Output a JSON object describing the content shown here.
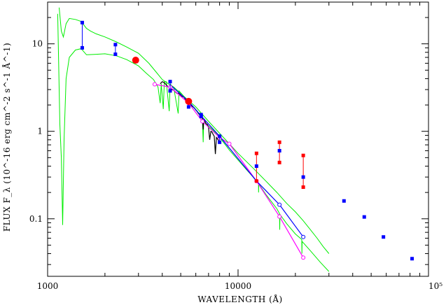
{
  "chart_data": {
    "type": "scatter",
    "xlabel": "WAVELENGTH (Å)",
    "ylabel": "FLUX F_λ (10^-16 erg cm^-2 s^-1 Å^-1)",
    "x_scale": "log",
    "y_scale": "log",
    "xlim": [
      1000,
      100000
    ],
    "ylim": [
      0.022,
      30
    ],
    "x_ticks": [
      {
        "value": 1000,
        "label": "1000"
      },
      {
        "value": 10000,
        "label": "10000"
      },
      {
        "value": 100000,
        "label": "10⁵"
      }
    ],
    "y_ticks": [
      {
        "value": 0.1,
        "label": "0.1"
      },
      {
        "value": 1,
        "label": "1"
      },
      {
        "value": 10,
        "label": "10"
      }
    ],
    "grid": false,
    "colors": {
      "green": "#00ee00",
      "black": "#000000",
      "blue": "#0000ff",
      "magenta": "#ff00ff",
      "red": "#ff0000"
    },
    "green_upper_model": [
      [
        1150,
        26
      ],
      [
        1180,
        14
      ],
      [
        1210,
        12
      ],
      [
        1250,
        17
      ],
      [
        1300,
        19.5
      ],
      [
        1400,
        19
      ],
      [
        1500,
        18
      ],
      [
        1600,
        15
      ],
      [
        1680,
        14
      ],
      [
        1800,
        13
      ],
      [
        2000,
        12
      ],
      [
        2300,
        10.5
      ],
      [
        2600,
        9.2
      ],
      [
        3000,
        7.8
      ],
      [
        3400,
        6
      ],
      [
        3700,
        4.8
      ],
      [
        4000,
        3.9
      ],
      [
        4300,
        3.5
      ],
      [
        4600,
        3.2
      ],
      [
        5000,
        2.7
      ],
      [
        5500,
        2.25
      ],
      [
        6000,
        1.9
      ],
      [
        7000,
        1.3
      ],
      [
        8000,
        0.95
      ],
      [
        9000,
        0.72
      ],
      [
        10000,
        0.56
      ],
      [
        12000,
        0.38
      ],
      [
        14000,
        0.27
      ],
      [
        16000,
        0.2
      ],
      [
        18000,
        0.15
      ],
      [
        20000,
        0.12
      ],
      [
        22000,
        0.095
      ],
      [
        24000,
        0.075
      ],
      [
        26000,
        0.06
      ],
      [
        28000,
        0.048
      ],
      [
        30000,
        0.04
      ]
    ],
    "green_lower_model": [
      [
        1130,
        22
      ],
      [
        1160,
        1.2
      ],
      [
        1180,
        0.5
      ],
      [
        1200,
        0.085
      ],
      [
        1220,
        0.8
      ],
      [
        1250,
        4
      ],
      [
        1300,
        7
      ],
      [
        1400,
        8.5
      ],
      [
        1500,
        8.8
      ],
      [
        1600,
        7.5
      ],
      [
        1800,
        7.6
      ],
      [
        2000,
        7.7
      ],
      [
        2300,
        7.3
      ],
      [
        2600,
        6.6
      ],
      [
        3000,
        5.6
      ],
      [
        3300,
        4.6
      ],
      [
        3600,
        3.9
      ],
      [
        3800,
        3.2
      ],
      [
        3900,
        2.1
      ],
      [
        3950,
        3.5
      ],
      [
        4050,
        1.8
      ],
      [
        4100,
        3.7
      ],
      [
        4200,
        3.7
      ],
      [
        4350,
        1.7
      ],
      [
        4400,
        3.5
      ],
      [
        4600,
        3.1
      ],
      [
        4850,
        1.6
      ],
      [
        4900,
        2.9
      ],
      [
        5200,
        2.5
      ],
      [
        5500,
        2.15
      ],
      [
        6000,
        1.75
      ],
      [
        6500,
        1.38
      ],
      [
        6560,
        0.75
      ],
      [
        6600,
        1.3
      ],
      [
        7000,
        1.15
      ],
      [
        7500,
        1.0
      ],
      [
        8000,
        0.85
      ],
      [
        8500,
        0.72
      ],
      [
        9000,
        0.61
      ],
      [
        10000,
        0.47
      ],
      [
        11000,
        0.37
      ],
      [
        12000,
        0.3
      ],
      [
        12800,
        0.25
      ],
      [
        12820,
        0.2
      ],
      [
        12850,
        0.25
      ],
      [
        14000,
        0.19
      ],
      [
        15000,
        0.156
      ],
      [
        16000,
        0.13
      ],
      [
        16500,
        0.115
      ],
      [
        16550,
        0.075
      ],
      [
        16600,
        0.112
      ],
      [
        18000,
        0.088
      ],
      [
        20000,
        0.067
      ],
      [
        21600,
        0.058
      ],
      [
        21650,
        0.04
      ],
      [
        21700,
        0.055
      ],
      [
        24000,
        0.043
      ],
      [
        27000,
        0.032
      ],
      [
        30000,
        0.025
      ]
    ],
    "black_spectrum": [
      [
        3900,
        3.5
      ],
      [
        4000,
        3.7
      ],
      [
        4100,
        3.6
      ],
      [
        4200,
        3.4
      ],
      [
        4300,
        3.2
      ],
      [
        4400,
        3.15
      ],
      [
        4500,
        3.0
      ],
      [
        4600,
        2.95
      ],
      [
        4700,
        2.8
      ],
      [
        4800,
        2.7
      ],
      [
        4900,
        2.75
      ],
      [
        5000,
        2.55
      ],
      [
        5100,
        2.5
      ],
      [
        5200,
        2.45
      ],
      [
        5300,
        2.3
      ],
      [
        5400,
        2.25
      ],
      [
        5500,
        2.1
      ],
      [
        5600,
        2.15
      ],
      [
        5700,
        1.95
      ],
      [
        5800,
        1.9
      ],
      [
        5900,
        1.85
      ],
      [
        6000,
        1.75
      ],
      [
        6100,
        1.7
      ],
      [
        6200,
        1.6
      ],
      [
        6300,
        1.55
      ],
      [
        6400,
        1.45
      ],
      [
        6500,
        1.42
      ],
      [
        6560,
        1.05
      ],
      [
        6600,
        1.35
      ],
      [
        6700,
        1.3
      ],
      [
        6800,
        1.22
      ],
      [
        6900,
        1.2
      ],
      [
        7000,
        1.1
      ],
      [
        7100,
        0.8
      ],
      [
        7200,
        1.0
      ],
      [
        7300,
        0.98
      ],
      [
        7400,
        0.92
      ],
      [
        7500,
        0.88
      ],
      [
        7600,
        0.55
      ],
      [
        7700,
        0.85
      ],
      [
        7800,
        0.82
      ],
      [
        7900,
        0.78
      ],
      [
        8000,
        0.75
      ]
    ],
    "blue_pairs": [
      {
        "x": 1520,
        "y": [
          17.5,
          9.0
        ]
      },
      {
        "x": 2270,
        "y": [
          9.8,
          7.6
        ]
      },
      {
        "x": 4400,
        "y": [
          3.7,
          2.9
        ]
      },
      {
        "x": 5500,
        "y": [
          2.2,
          1.9
        ]
      },
      {
        "x": 6400,
        "y": [
          1.55,
          1.48
        ]
      },
      {
        "x": 8000,
        "y": [
          0.88,
          0.75
        ]
      }
    ],
    "blue_squares": [
      {
        "x": 12500,
        "y": 0.4
      },
      {
        "x": 16500,
        "y": 0.6
      },
      {
        "x": 22000,
        "y": 0.3
      },
      {
        "x": 36000,
        "y": 0.16
      },
      {
        "x": 46000,
        "y": 0.105
      },
      {
        "x": 58000,
        "y": 0.062
      },
      {
        "x": 82000,
        "y": 0.035
      }
    ],
    "red_pairs": [
      {
        "x": 12500,
        "y": [
          0.56,
          0.27
        ]
      },
      {
        "x": 16500,
        "y": [
          0.75,
          0.44
        ]
      },
      {
        "x": 22000,
        "y": [
          0.53,
          0.23
        ]
      }
    ],
    "red_circles": [
      {
        "x": 2900,
        "y": 6.5
      },
      {
        "x": 5500,
        "y": 2.2
      }
    ],
    "blue_line": [
      [
        4400,
        3.4
      ],
      [
        5500,
        2.2
      ],
      [
        6400,
        1.5
      ],
      [
        8000,
        0.88
      ],
      [
        12500,
        0.27
      ],
      [
        16500,
        0.145
      ],
      [
        22000,
        0.062
      ]
    ],
    "magenta_line": [
      [
        3650,
        3.45
      ],
      [
        4400,
        3.2
      ],
      [
        5500,
        2.1
      ],
      [
        6500,
        1.3
      ],
      [
        8000,
        0.85
      ],
      [
        9000,
        0.72
      ],
      [
        12500,
        0.27
      ],
      [
        16500,
        0.106
      ],
      [
        22000,
        0.036
      ]
    ]
  }
}
